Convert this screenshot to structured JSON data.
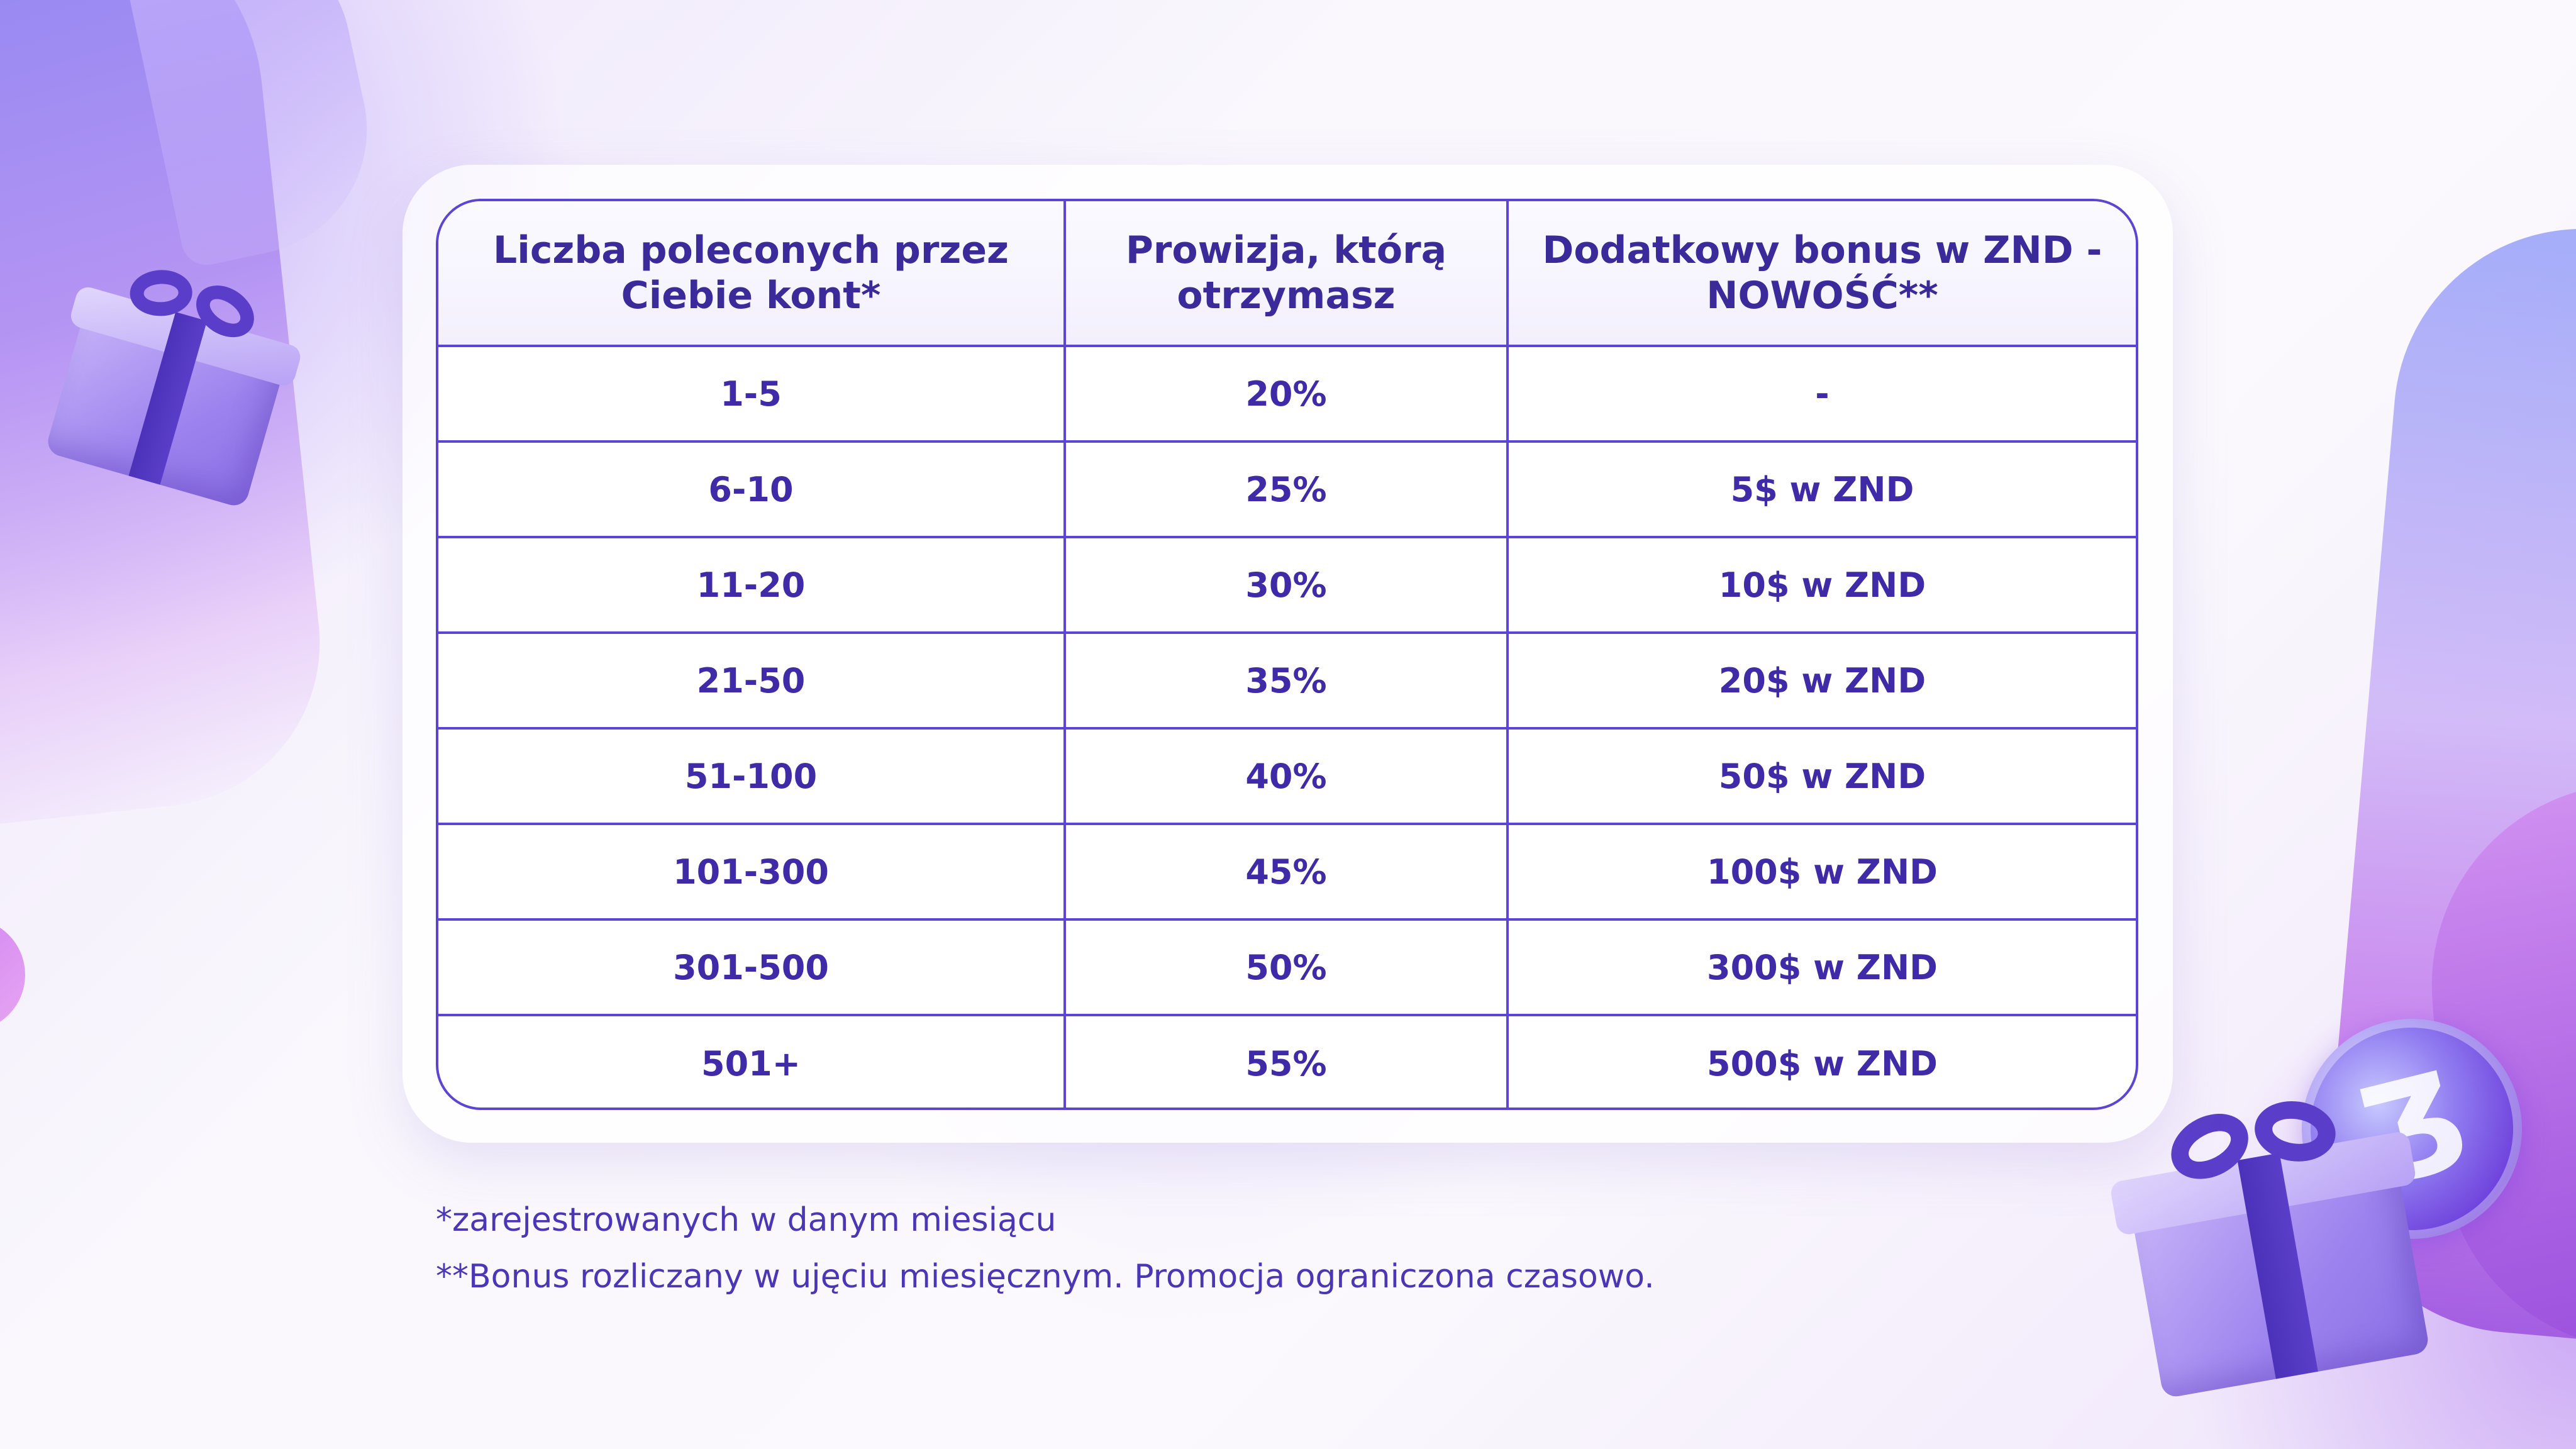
{
  "table": {
    "headers": [
      "Liczba poleconych przez Ciebie kont*",
      "Prowizja, którą otrzymasz",
      "Dodatkowy bonus w ZND - NOWOŚĆ**"
    ],
    "rows": [
      [
        "1-5",
        "20%",
        "-"
      ],
      [
        "6-10",
        "25%",
        "5$ w ZND"
      ],
      [
        "11-20",
        "30%",
        "10$ w ZND"
      ],
      [
        "21-50",
        "35%",
        "20$ w ZND"
      ],
      [
        "51-100",
        "40%",
        "50$ w ZND"
      ],
      [
        "101-300",
        "45%",
        "100$ w ZND"
      ],
      [
        "301-500",
        "50%",
        "300$ w ZND"
      ],
      [
        "501+",
        "55%",
        "500$ w ZND"
      ]
    ]
  },
  "notes": {
    "note1": "*zarejestrowanych w danym miesiącu",
    "note2": "**Bonus rozliczany w ujęciu miesięcznym. Promocja ograniczona czasowo."
  },
  "decor": {
    "gift_icon_1": "gift-icon",
    "gift_icon_2": "gift-icon",
    "coin_icon": "zondacrypto-coin-icon"
  },
  "colors": {
    "accent": "#5b45d4",
    "text": "#3f2aa8"
  }
}
